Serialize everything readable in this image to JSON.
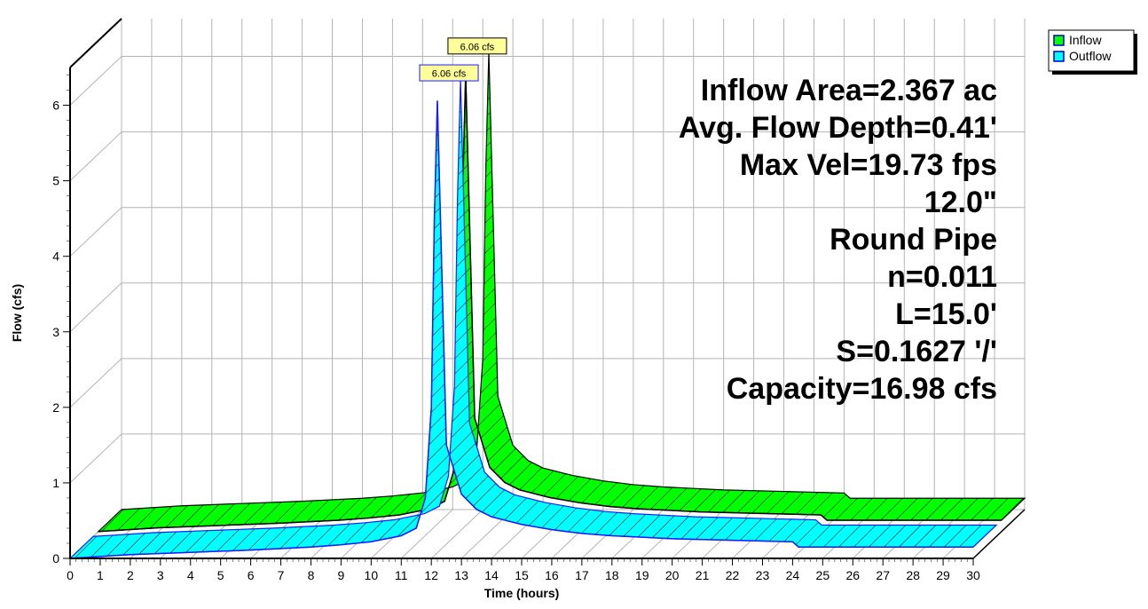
{
  "chart_data": {
    "type": "area",
    "style": "3d-hatched",
    "xlabel": "Time  (hours)",
    "ylabel": "Flow  (cfs)",
    "x_ticks": [
      0,
      1,
      2,
      3,
      4,
      5,
      6,
      7,
      8,
      9,
      10,
      11,
      12,
      13,
      14,
      15,
      16,
      17,
      18,
      19,
      20,
      21,
      22,
      23,
      24,
      25,
      26,
      27,
      28,
      29,
      30
    ],
    "y_ticks": [
      0,
      1,
      2,
      3,
      4,
      5,
      6
    ],
    "xlim": [
      0,
      30
    ],
    "ylim": [
      0,
      6.5
    ],
    "grid": true,
    "legend_position": "top-right",
    "legend": [
      {
        "name": "Inflow",
        "color": "#00ff00"
      },
      {
        "name": "Outflow",
        "color": "#00ffff"
      }
    ],
    "series": [
      {
        "name": "Inflow",
        "color": "#00ff00",
        "peak_label": "6.06 cfs",
        "x": [
          0,
          2,
          4,
          6,
          8,
          9,
          10,
          11,
          11.5,
          11.8,
          12,
          12.1,
          12.2,
          12.5,
          13,
          13.5,
          14,
          15,
          16,
          17,
          18,
          19,
          20,
          22,
          24,
          24.2,
          30
        ],
        "y": [
          0,
          0.05,
          0.08,
          0.11,
          0.15,
          0.18,
          0.22,
          0.3,
          0.4,
          0.8,
          2.0,
          4.5,
          6.06,
          1.5,
          0.85,
          0.65,
          0.55,
          0.45,
          0.38,
          0.33,
          0.3,
          0.28,
          0.26,
          0.24,
          0.22,
          0.15,
          0.15
        ]
      },
      {
        "name": "Outflow",
        "color": "#00ffff",
        "peak_label": "6.06 cfs",
        "x": [
          0,
          2,
          4,
          6,
          8,
          9,
          10,
          11,
          11.5,
          11.8,
          12,
          12.1,
          12.2,
          12.5,
          13,
          13.5,
          14,
          15,
          16,
          17,
          18,
          19,
          20,
          22,
          24,
          24.2,
          30
        ],
        "y": [
          0,
          0.05,
          0.08,
          0.11,
          0.15,
          0.18,
          0.22,
          0.3,
          0.4,
          0.8,
          2.0,
          4.5,
          6.06,
          1.5,
          0.85,
          0.65,
          0.55,
          0.45,
          0.38,
          0.33,
          0.3,
          0.28,
          0.26,
          0.24,
          0.22,
          0.15,
          0.15
        ]
      }
    ],
    "annotations": [
      "Inflow Area=2.367 ac",
      "Avg. Flow Depth=0.41'",
      "Max Vel=19.73 fps",
      "12.0\"",
      "Round Pipe",
      "n=0.011",
      "L=15.0'",
      "S=0.1627 '/'",
      "Capacity=16.98 cfs"
    ]
  }
}
